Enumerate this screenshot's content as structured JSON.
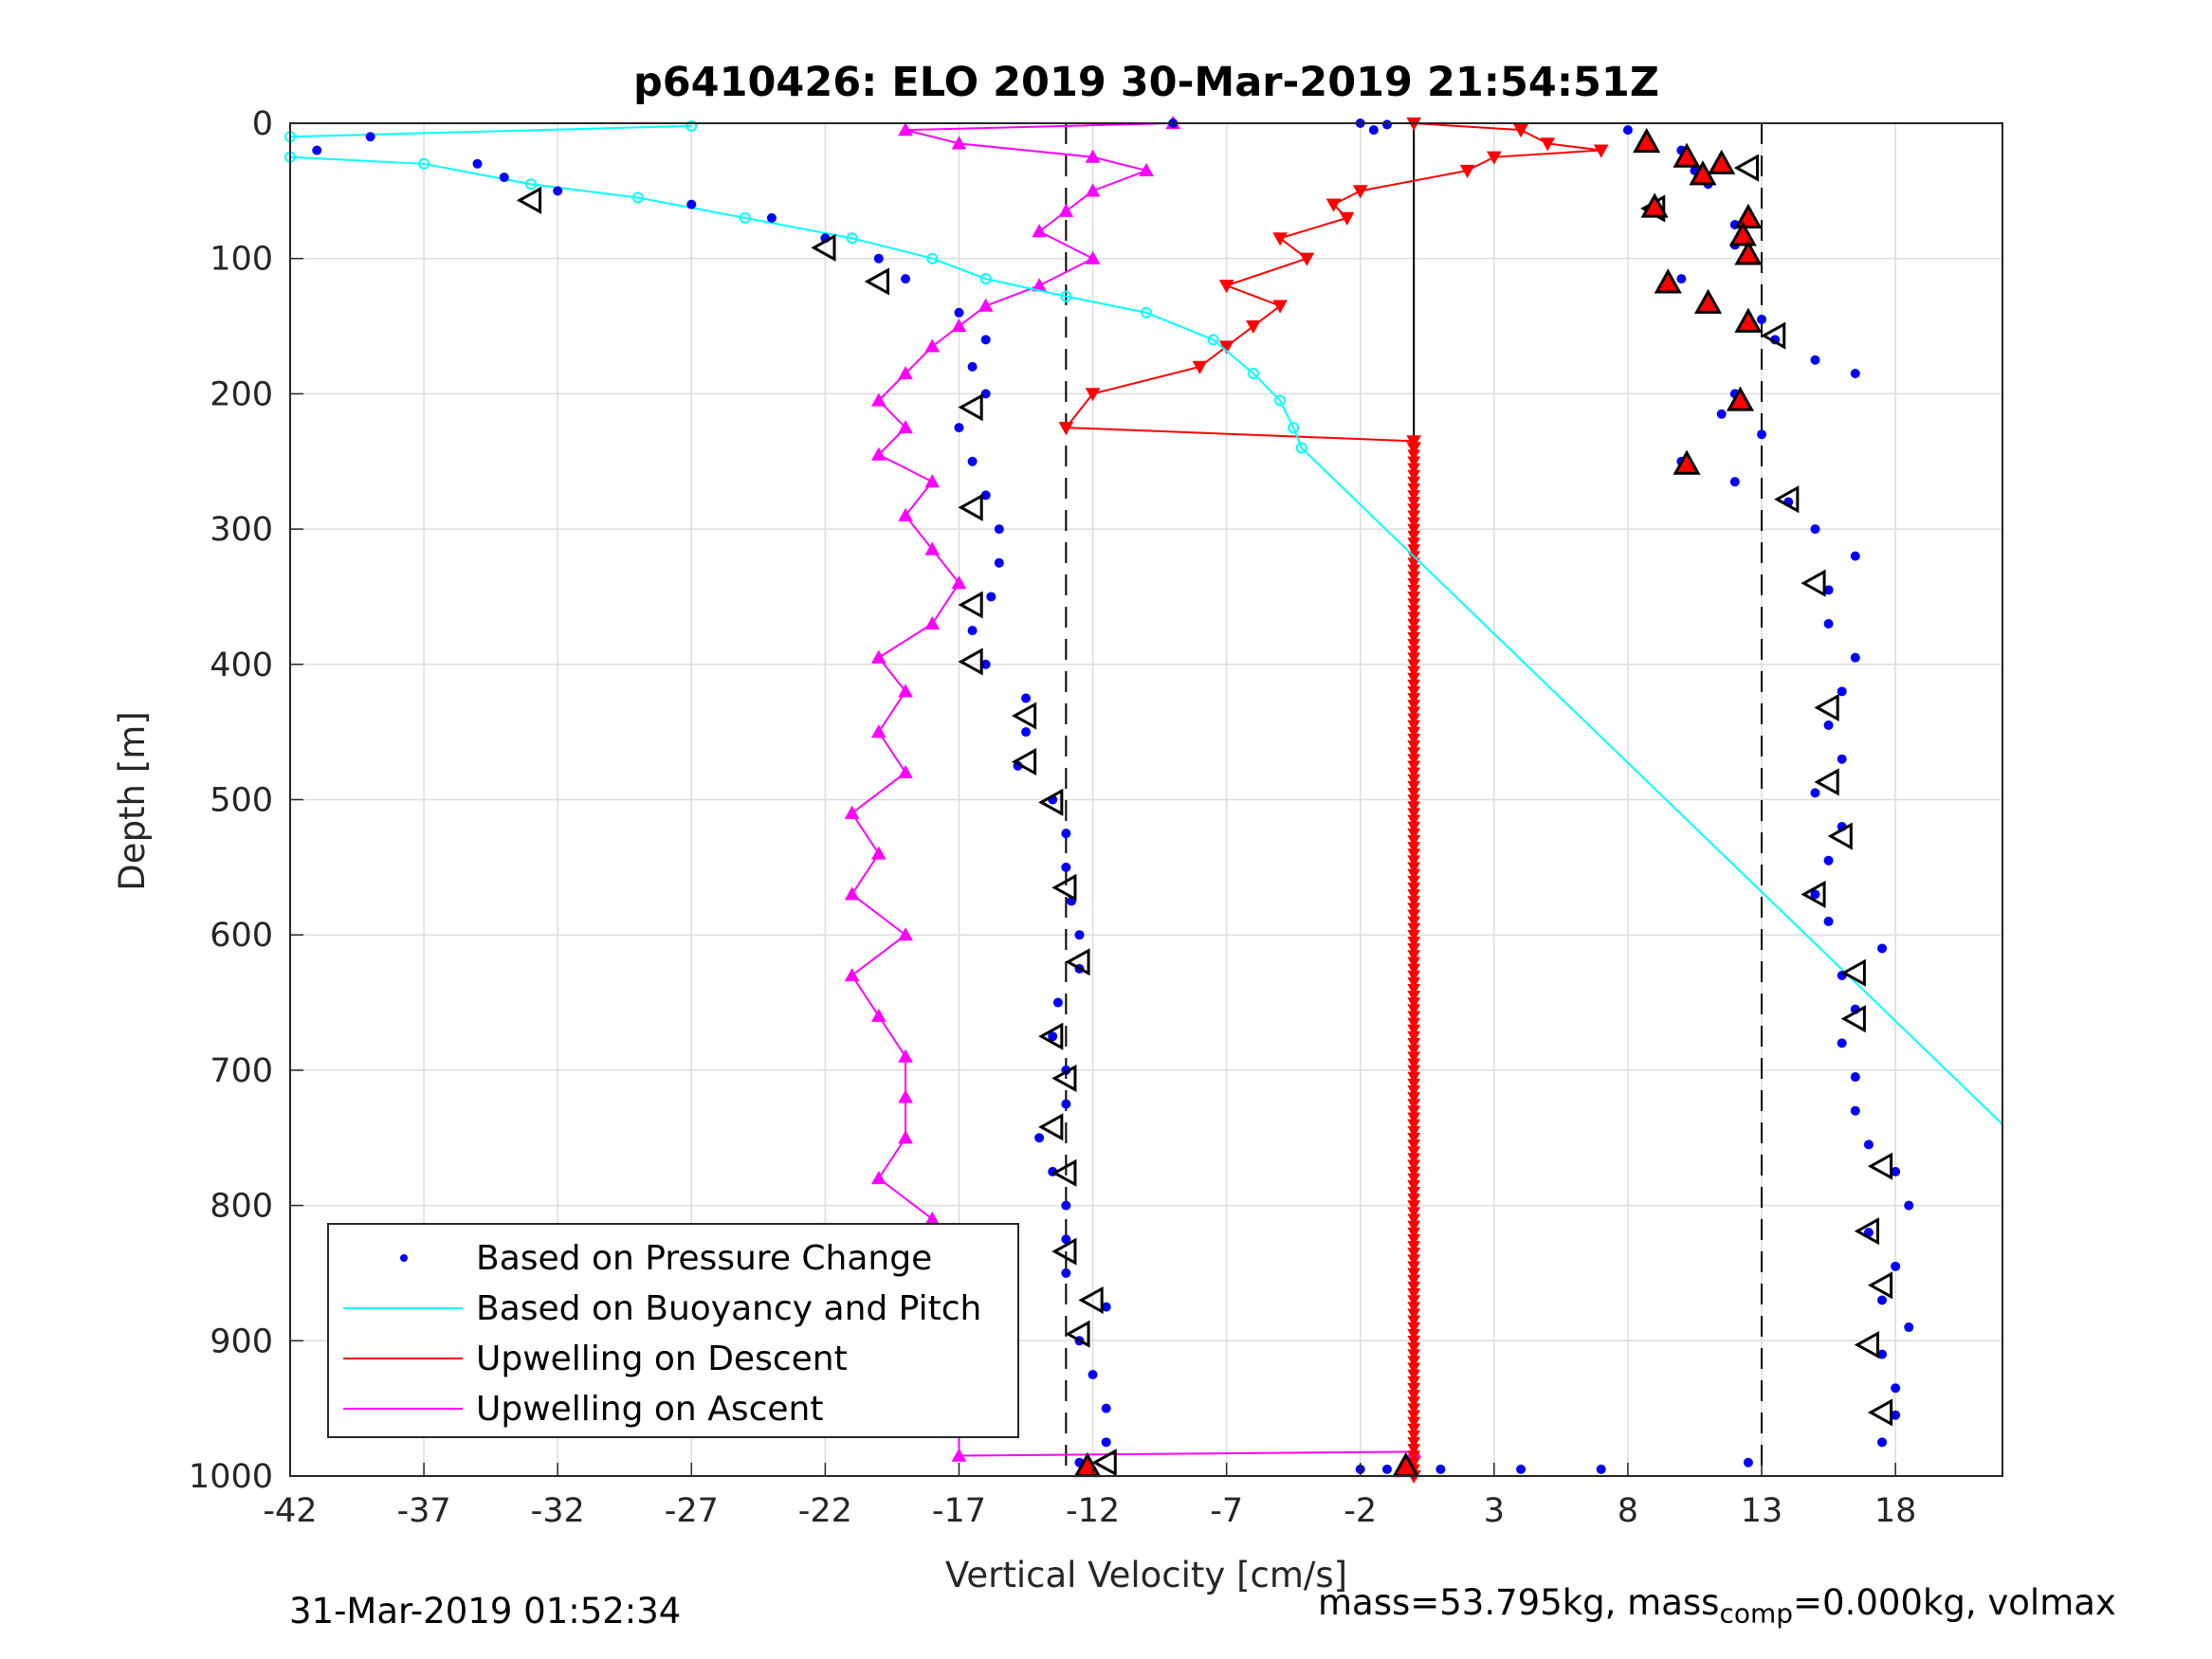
{
  "chart_data": {
    "type": "scatter",
    "title": "p6410426: ELO 2019 30-Mar-2019 21:54:51Z",
    "xlabel": "Vertical Velocity [cm/s]",
    "ylabel": "Depth [m]",
    "xlim": [
      -42,
      22
    ],
    "ylim": [
      0,
      1000
    ],
    "y_reversed": true,
    "grid": true,
    "x_ticks": [
      -42,
      -37,
      -32,
      -27,
      -22,
      -17,
      -12,
      -7,
      -2,
      3,
      8,
      13,
      18
    ],
    "y_ticks": [
      0,
      100,
      200,
      300,
      400,
      500,
      600,
      700,
      800,
      900,
      1000
    ],
    "reference_lines": {
      "dashed_x": [
        -13,
        13
      ],
      "solid_x": [
        0
      ]
    },
    "legend": {
      "placement": "bottom-left",
      "entries": [
        "Based on Pressure Change",
        "Based on Buoyancy and Pitch",
        "Upwelling on Descent",
        "Upwelling on Ascent"
      ]
    },
    "colors": {
      "pressure": "#0000ff",
      "buoyancy": "#00ffff",
      "descent": "#ff0000",
      "ascent": "#ff00ff"
    },
    "series": [
      {
        "name": "Based on Pressure Change",
        "marker": "dot",
        "segments": [
          {
            "points": [
              [
                -41,
                20
              ],
              [
                -39,
                10
              ],
              [
                -35,
                30
              ],
              [
                -34,
                40
              ],
              [
                -32,
                50
              ],
              [
                -27,
                60
              ],
              [
                -24,
                70
              ],
              [
                -22,
                85
              ],
              [
                -20,
                100
              ],
              [
                -19,
                115
              ],
              [
                -17,
                140
              ],
              [
                -16,
                160
              ],
              [
                -16.5,
                180
              ],
              [
                -16,
                200
              ],
              [
                -17,
                225
              ],
              [
                -16.5,
                250
              ],
              [
                -16,
                275
              ],
              [
                -15.5,
                300
              ],
              [
                -15.5,
                325
              ],
              [
                -15.8,
                350
              ],
              [
                -16.5,
                375
              ],
              [
                -16,
                400
              ],
              [
                -14.5,
                425
              ],
              [
                -14.5,
                450
              ],
              [
                -14.8,
                475
              ],
              [
                -13.5,
                500
              ],
              [
                -13,
                525
              ],
              [
                -13,
                550
              ],
              [
                -12.8,
                575
              ],
              [
                -12.5,
                600
              ],
              [
                -12.5,
                625
              ],
              [
                -13.3,
                650
              ],
              [
                -13.5,
                675
              ],
              [
                -13,
                700
              ],
              [
                -13,
                725
              ],
              [
                -14,
                750
              ],
              [
                -13.5,
                775
              ],
              [
                -13,
                800
              ],
              [
                -13,
                825
              ],
              [
                -13,
                850
              ],
              [
                -11.5,
                875
              ],
              [
                -12.5,
                900
              ],
              [
                -12,
                925
              ],
              [
                -11.5,
                950
              ],
              [
                -11.5,
                975
              ],
              [
                -12.5,
                990
              ]
            ]
          },
          {
            "points": [
              [
                8,
                5
              ],
              [
                10,
                20
              ],
              [
                10.5,
                35
              ],
              [
                11,
                45
              ],
              [
                9,
                60
              ],
              [
                12,
                75
              ],
              [
                12,
                90
              ],
              [
                12.5,
                100
              ],
              [
                10,
                115
              ],
              [
                11,
                130
              ],
              [
                13,
                145
              ],
              [
                13.5,
                160
              ],
              [
                15,
                175
              ],
              [
                16.5,
                185
              ],
              [
                12,
                200
              ],
              [
                11.5,
                215
              ],
              [
                13,
                230
              ],
              [
                10,
                250
              ],
              [
                12,
                265
              ],
              [
                14,
                280
              ],
              [
                15,
                300
              ],
              [
                16.5,
                320
              ],
              [
                15.5,
                345
              ],
              [
                15.5,
                370
              ],
              [
                16.5,
                395
              ],
              [
                16,
                420
              ],
              [
                15.5,
                445
              ],
              [
                16,
                470
              ],
              [
                15,
                495
              ],
              [
                16,
                520
              ],
              [
                15.5,
                545
              ],
              [
                15,
                570
              ],
              [
                15.5,
                590
              ],
              [
                17.5,
                610
              ],
              [
                16,
                630
              ],
              [
                16.5,
                655
              ],
              [
                16,
                680
              ],
              [
                16.5,
                705
              ],
              [
                16.5,
                730
              ],
              [
                17,
                755
              ],
              [
                18,
                775
              ],
              [
                18.5,
                800
              ],
              [
                17,
                820
              ],
              [
                18,
                845
              ],
              [
                17.5,
                870
              ],
              [
                18.5,
                890
              ],
              [
                17.5,
                910
              ],
              [
                18,
                935
              ],
              [
                18,
                955
              ],
              [
                17.5,
                975
              ],
              [
                12.5,
                990
              ]
            ]
          },
          {
            "points": [
              [
                -9,
                0
              ],
              [
                -2,
                0
              ],
              [
                -1.5,
                5
              ],
              [
                -1,
                1
              ],
              [
                -1,
                995
              ],
              [
                -2,
                995
              ],
              [
                1,
                995
              ],
              [
                4,
                995
              ],
              [
                7,
                995
              ]
            ]
          }
        ]
      },
      {
        "name": "Based on Buoyancy and Pitch",
        "marker": "circle-line",
        "points": [
          [
            -27,
            2
          ],
          [
            -42,
            10
          ],
          [
            -42,
            25
          ],
          [
            -37,
            30
          ],
          [
            -33,
            45
          ],
          [
            -29,
            55
          ],
          [
            -25,
            70
          ],
          [
            -21,
            85
          ],
          [
            -18,
            100
          ],
          [
            -16,
            115
          ],
          [
            -13,
            128
          ],
          [
            -10,
            140
          ],
          [
            -7.5,
            160
          ],
          [
            -6,
            185
          ],
          [
            -5,
            205
          ],
          [
            -4.5,
            225
          ],
          [
            -4.2,
            240
          ],
          [
            22,
            740
          ]
        ]
      },
      {
        "name": "Upwelling on Descent",
        "marker": "triangle-down",
        "points": [
          [
            0,
            0
          ],
          [
            4,
            5
          ],
          [
            5,
            15
          ],
          [
            7,
            20
          ],
          [
            3,
            25
          ],
          [
            2,
            35
          ],
          [
            -2,
            50
          ],
          [
            -3,
            60
          ],
          [
            -2.5,
            70
          ],
          [
            -5,
            85
          ],
          [
            -4,
            100
          ],
          [
            -7,
            120
          ],
          [
            -5,
            135
          ],
          [
            -6,
            150
          ],
          [
            -7,
            165
          ],
          [
            -8,
            180
          ],
          [
            -12,
            200
          ],
          [
            -13,
            225
          ],
          [
            0,
            235
          ],
          [
            0,
            240
          ],
          [
            0,
            1000
          ]
        ]
      },
      {
        "name": "Upwelling on Ascent",
        "marker": "triangle-up",
        "points": [
          [
            -9,
            0
          ],
          [
            -19,
            5
          ],
          [
            -17,
            15
          ],
          [
            -12,
            25
          ],
          [
            -10,
            35
          ],
          [
            -12,
            50
          ],
          [
            -13,
            65
          ],
          [
            -14,
            80
          ],
          [
            -12,
            100
          ],
          [
            -14,
            120
          ],
          [
            -16,
            135
          ],
          [
            -17,
            150
          ],
          [
            -18,
            165
          ],
          [
            -19,
            185
          ],
          [
            -20,
            205
          ],
          [
            -19,
            225
          ],
          [
            -20,
            245
          ],
          [
            -18,
            265
          ],
          [
            -19,
            290
          ],
          [
            -18,
            315
          ],
          [
            -17,
            340
          ],
          [
            -18,
            370
          ],
          [
            -20,
            395
          ],
          [
            -19,
            420
          ],
          [
            -20,
            450
          ],
          [
            -19,
            480
          ],
          [
            -21,
            510
          ],
          [
            -20,
            540
          ],
          [
            -21,
            570
          ],
          [
            -19,
            600
          ],
          [
            -21,
            630
          ],
          [
            -20,
            660
          ],
          [
            -19,
            690
          ],
          [
            -19,
            720
          ],
          [
            -19,
            750
          ],
          [
            -20,
            780
          ],
          [
            -18,
            810
          ],
          [
            -19,
            840
          ],
          [
            -18,
            870
          ],
          [
            -20,
            900
          ],
          [
            -18,
            930
          ],
          [
            -17,
            960
          ],
          [
            -17,
            985
          ],
          [
            0,
            982
          ]
        ]
      },
      {
        "name": "Pressure markers (descent)",
        "marker": "triangle-up-red",
        "points": [
          [
            8.7,
            14
          ],
          [
            10.2,
            25
          ],
          [
            11.5,
            30
          ],
          [
            10.8,
            38
          ],
          [
            9,
            62
          ],
          [
            12.5,
            70
          ],
          [
            12.3,
            83
          ],
          [
            12.5,
            97
          ],
          [
            9.5,
            118
          ],
          [
            11,
            133
          ],
          [
            12.5,
            147
          ],
          [
            12.2,
            205
          ],
          [
            10.2,
            252
          ],
          [
            -12.2,
            993
          ],
          [
            -0.3,
            993
          ]
        ]
      },
      {
        "name": "Pressure markers (left)",
        "marker": "triangle-open",
        "points": [
          [
            -33,
            57
          ],
          [
            -22,
            92
          ],
          [
            -20,
            117
          ],
          [
            -16.5,
            210
          ],
          [
            -16.5,
            284
          ],
          [
            -16.5,
            356
          ],
          [
            -16.5,
            398
          ],
          [
            -14.5,
            438
          ],
          [
            -14.5,
            472
          ],
          [
            -13.5,
            502
          ],
          [
            -13,
            565
          ],
          [
            -12.5,
            620
          ],
          [
            -13.5,
            675
          ],
          [
            -13,
            706
          ],
          [
            -13.5,
            742
          ],
          [
            -13,
            776
          ],
          [
            -13,
            834
          ],
          [
            -12,
            870
          ],
          [
            -12.5,
            895
          ],
          [
            -11.5,
            990
          ]
        ]
      },
      {
        "name": "Pressure markers (right)",
        "marker": "triangle-open",
        "points": [
          [
            12.5,
            33
          ],
          [
            9,
            63
          ],
          [
            13.5,
            157
          ],
          [
            14,
            278
          ],
          [
            15,
            340
          ],
          [
            15.5,
            432
          ],
          [
            15.5,
            487
          ],
          [
            16,
            527
          ],
          [
            15,
            570
          ],
          [
            16.5,
            628
          ],
          [
            16.5,
            662
          ],
          [
            17.5,
            771
          ],
          [
            17,
            819
          ],
          [
            17.5,
            859
          ],
          [
            17,
            903
          ],
          [
            17.5,
            953
          ]
        ]
      }
    ]
  },
  "footer": {
    "timestamp": "31-Mar-2019 01:52:34",
    "mass_prefix": "mass=53.795kg, mass",
    "mass_sub": "comp",
    "mass_suffix": "=0.000kg, volmax"
  }
}
